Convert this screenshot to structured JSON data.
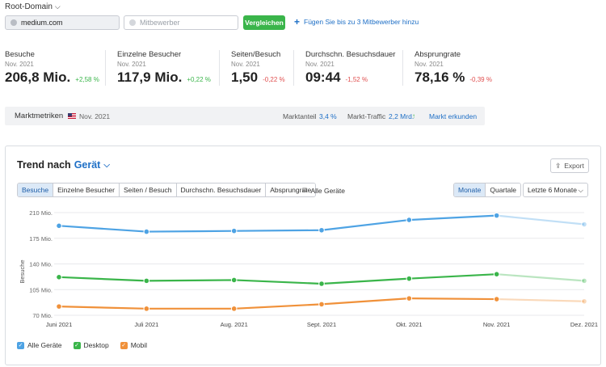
{
  "header": {
    "root_domain_label": "Root-Domain"
  },
  "search": {
    "domain_value": "medium.com",
    "competitor_placeholder": "Mitbewerber",
    "compare_label": "Vergleichen",
    "add_competitors_label": "Fügen Sie bis zu 3 Mitbewerber hinzu"
  },
  "metrics": [
    {
      "label": "Besuche",
      "date": "Nov. 2021",
      "value": "206,8 Mio.",
      "delta": "+2,58 %"
    },
    {
      "label": "Einzelne Besucher",
      "date": "Nov. 2021",
      "value": "117,9 Mio.",
      "delta": "+0,22 %"
    },
    {
      "label": "Seiten/Besuch",
      "date": "Nov. 2021",
      "value": "1,50",
      "delta": "-0,22 %"
    },
    {
      "label": "Durchschn. Besuchsdauer",
      "date": "Nov. 2021",
      "value": "09:44",
      "delta": "-1,52 %"
    },
    {
      "label": "Absprungrate",
      "date": "Nov. 2021",
      "value": "78,16 %",
      "delta": "-0,39 %"
    }
  ],
  "market": {
    "title": "Marktmetriken",
    "date": "Nov. 2021",
    "share_label": "Marktanteil",
    "share_value": "3,4 %",
    "traffic_label": "Markt-Traffic",
    "traffic_value": "2,2 Mrd.",
    "traffic_arrow": "↑",
    "explore_label": "Markt erkunden"
  },
  "trend": {
    "title_prefix": "Trend nach",
    "title_device": "Gerät",
    "export_label": "Export",
    "metric_tabs": [
      "Besuche",
      "Einzelne Besucher",
      "Seiten / Besuch",
      "Durchschn. Besuchsdauer",
      "Absprungrate"
    ],
    "active_tab": "Besuche",
    "all_devices_label": "Alle Geräte",
    "period_tabs": [
      "Monate",
      "Quartale"
    ],
    "active_period": "Monate",
    "range_value": "Letzte 6 Monate"
  },
  "legend": [
    {
      "name": "Alle Geräte",
      "color": "#4ea3e4"
    },
    {
      "name": "Desktop",
      "color": "#3ab54a"
    },
    {
      "name": "Mobil",
      "color": "#f0913a"
    }
  ],
  "chart_data": {
    "type": "line",
    "ylabel": "Besuche",
    "x": [
      "Juni 2021",
      "Juli 2021",
      "Aug. 2021",
      "Sept. 2021",
      "Okt. 2021",
      "Nov. 2021",
      "Dez. 2021"
    ],
    "y_ticks": [
      "210 Mio.",
      "175 Mio.",
      "140 Mio.",
      "105 Mio.",
      "70 Mio."
    ],
    "y_tick_values": [
      210,
      175,
      140,
      105,
      70
    ],
    "ylim": [
      70,
      210
    ],
    "grid": true,
    "series": [
      {
        "name": "Alle Geräte",
        "color": "#4ea3e4",
        "values": [
          192,
          184,
          185,
          186,
          200,
          206,
          194
        ],
        "projected_last": true
      },
      {
        "name": "Desktop",
        "color": "#3ab54a",
        "values": [
          122,
          117,
          118,
          113,
          120,
          126,
          117
        ],
        "projected_last": true
      },
      {
        "name": "Mobil",
        "color": "#f0913a",
        "values": [
          82,
          79,
          79,
          85,
          93,
          92,
          89
        ],
        "projected_last": true
      }
    ]
  }
}
